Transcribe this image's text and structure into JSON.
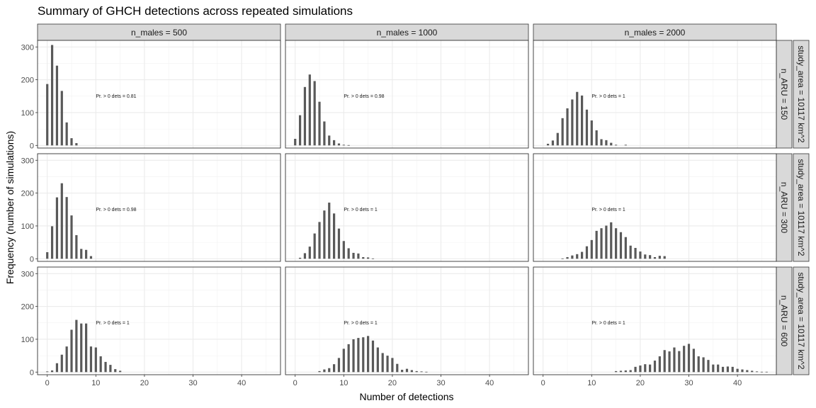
{
  "chart_data": {
    "type": "bar",
    "title": "Summary of GHCH detections across repeated simulations",
    "xlabel": "Number of detections",
    "ylabel": "Frequency (number of simulations)",
    "xlim": [
      -2,
      48
    ],
    "ylim": [
      -8,
      320
    ],
    "x_ticks": [
      0,
      10,
      20,
      30,
      40
    ],
    "y_ticks": [
      0,
      100,
      200,
      300
    ],
    "grid": true,
    "facet_columns": [
      "n_males = 500",
      "n_males = 1000",
      "n_males = 2000"
    ],
    "facet_rows": [
      "n_ARU = 150",
      "n_ARU = 300",
      "n_ARU = 600"
    ],
    "facet_row_strip2": "study_area = 10117 km^2",
    "panels": [
      {
        "row": 0,
        "col": 0,
        "annotation": "Pr. > 0 dets = 0.81",
        "x": [
          0,
          1,
          2,
          3,
          4,
          5,
          6
        ],
        "y": [
          187,
          306,
          243,
          166,
          70,
          22,
          7
        ]
      },
      {
        "row": 0,
        "col": 1,
        "annotation": "Pr. > 0 dets = 0.98",
        "x": [
          0,
          1,
          2,
          3,
          4,
          5,
          6,
          7,
          8,
          9,
          10,
          11
        ],
        "y": [
          20,
          92,
          178,
          216,
          196,
          133,
          73,
          30,
          16,
          6,
          2,
          1
        ]
      },
      {
        "row": 0,
        "col": 2,
        "annotation": "Pr. > 0 dets = 1",
        "x": [
          1,
          2,
          3,
          4,
          5,
          6,
          7,
          8,
          9,
          10,
          11,
          12,
          13,
          14,
          15,
          17
        ],
        "y": [
          5,
          15,
          38,
          83,
          113,
          140,
          163,
          152,
          109,
          76,
          46,
          19,
          16,
          8,
          2,
          2
        ]
      },
      {
        "row": 1,
        "col": 0,
        "annotation": "Pr. > 0 dets = 0.98",
        "x": [
          0,
          1,
          2,
          3,
          4,
          5,
          6,
          7,
          8,
          9
        ],
        "y": [
          20,
          99,
          187,
          230,
          188,
          132,
          72,
          30,
          27,
          8
        ]
      },
      {
        "row": 1,
        "col": 1,
        "annotation": "Pr. > 0 dets = 1",
        "x": [
          1,
          2,
          3,
          4,
          5,
          6,
          7,
          8,
          9,
          10,
          11,
          12,
          13,
          14,
          15,
          16
        ],
        "y": [
          3,
          17,
          37,
          77,
          112,
          147,
          171,
          138,
          92,
          54,
          32,
          18,
          16,
          5,
          4,
          1
        ]
      },
      {
        "row": 1,
        "col": 2,
        "annotation": "Pr. > 0 dets = 1",
        "x": [
          4,
          5,
          6,
          7,
          8,
          9,
          10,
          11,
          12,
          13,
          14,
          15,
          16,
          17,
          18,
          19,
          20,
          21,
          22,
          23,
          24,
          25
        ],
        "y": [
          1,
          5,
          10,
          14,
          21,
          38,
          57,
          85,
          93,
          101,
          111,
          93,
          81,
          66,
          40,
          33,
          22,
          13,
          11,
          5,
          9,
          8
        ]
      },
      {
        "row": 2,
        "col": 0,
        "annotation": "Pr. > 0 dets = 1",
        "x": [
          0,
          1,
          2,
          3,
          4,
          5,
          6,
          7,
          8,
          9,
          10,
          11,
          12,
          13,
          14,
          15
        ],
        "y": [
          2,
          5,
          27,
          53,
          78,
          129,
          159,
          148,
          148,
          78,
          75,
          48,
          31,
          22,
          9,
          4
        ]
      },
      {
        "row": 2,
        "col": 1,
        "annotation": "Pr. > 0 dets = 1",
        "x": [
          5,
          6,
          7,
          8,
          9,
          10,
          11,
          12,
          13,
          14,
          15,
          16,
          17,
          18,
          19,
          20,
          21,
          22,
          23,
          24,
          25,
          26,
          27
        ],
        "y": [
          3,
          8,
          12,
          24,
          43,
          71,
          85,
          100,
          104,
          106,
          110,
          96,
          75,
          58,
          50,
          43,
          25,
          7,
          10,
          6,
          3,
          2,
          1
        ]
      },
      {
        "row": 2,
        "col": 2,
        "annotation": "Pr. > 0 dets = 1",
        "x": [
          15,
          16,
          17,
          18,
          19,
          20,
          21,
          22,
          23,
          24,
          25,
          26,
          27,
          28,
          29,
          30,
          31,
          32,
          33,
          34,
          35,
          36,
          37,
          38,
          39,
          40,
          41,
          42,
          43,
          44,
          45,
          46
        ],
        "y": [
          3,
          4,
          5,
          6,
          16,
          20,
          24,
          23,
          35,
          48,
          67,
          63,
          75,
          64,
          80,
          86,
          71,
          48,
          45,
          37,
          23,
          23,
          16,
          17,
          16,
          10,
          8,
          6,
          4,
          2,
          1,
          1
        ]
      }
    ]
  }
}
